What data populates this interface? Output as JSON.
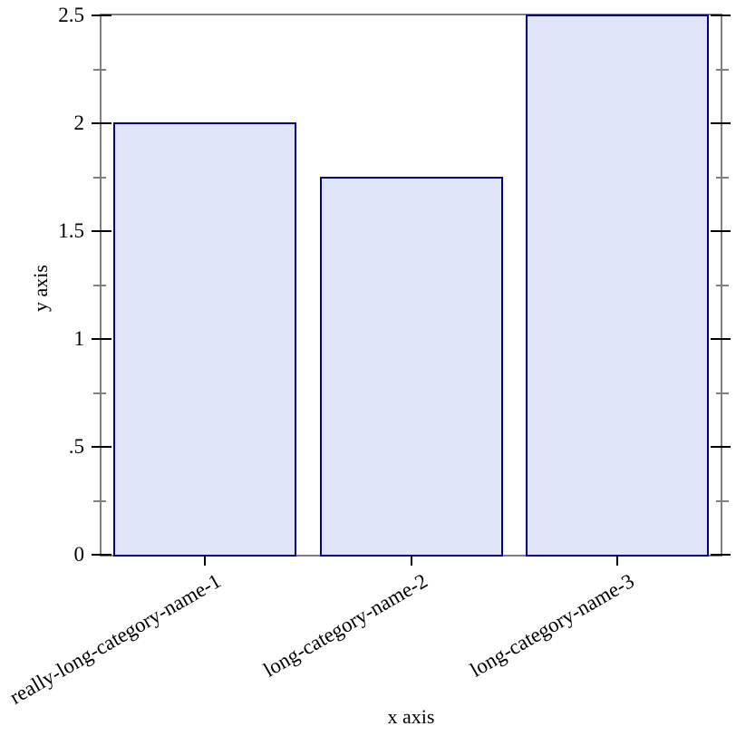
{
  "chart_data": {
    "type": "bar",
    "xlabel": "x axis",
    "ylabel": "y axis",
    "categories": [
      "really-long-category-name-1",
      "long-category-name-2",
      "long-category-name-3"
    ],
    "values": [
      2,
      1.75,
      2.5
    ],
    "ylim": [
      0,
      2.5
    ],
    "yticks": [
      {
        "value": 0,
        "label": "0"
      },
      {
        "value": 0.5,
        "label": ".5"
      },
      {
        "value": 1,
        "label": "1"
      },
      {
        "value": 1.5,
        "label": "1.5"
      },
      {
        "value": 2,
        "label": "2"
      },
      {
        "value": 2.5,
        "label": "2.5"
      }
    ],
    "yticks_minor": [
      0.25,
      0.75,
      1.25,
      1.75,
      2.25
    ],
    "grid": false,
    "legend": "none",
    "category_label_rotation_deg": -30,
    "colors": {
      "background": "#ffffff",
      "bar_fill": "#e0e5fa",
      "bar_border": "#00008a",
      "frame": "#808080",
      "major_tick": "#000000",
      "minor_tick": "#808080",
      "text": "#000000"
    }
  }
}
